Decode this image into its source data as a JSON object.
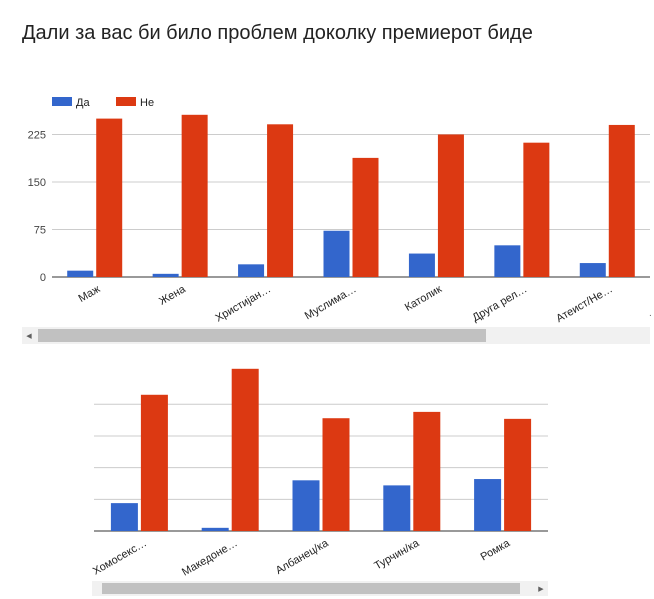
{
  "title": "Дали за вас би било проблем доколку премиерот биде",
  "colors": {
    "yes": "#3366cc",
    "no": "#dc3912",
    "grid": "#cccccc",
    "axis": "#333333"
  },
  "stray_mark": ".",
  "scroll_left_glyph": "◀",
  "scroll_right_glyph": "▶",
  "chart_data": [
    {
      "type": "bar",
      "legend_position": "top-left",
      "categories": [
        "Маж",
        "Жена",
        "Христијан…",
        "Муслима…",
        "Католик",
        "Друга рел…",
        "Атеист/Не…"
      ],
      "series": [
        {
          "name": "Да",
          "values": [
            10,
            5,
            20,
            73,
            37,
            50,
            22
          ]
        },
        {
          "name": "Не",
          "values": [
            250,
            256,
            241,
            188,
            225,
            212,
            240
          ]
        }
      ],
      "yticks": [
        "0",
        "75",
        "150",
        "225"
      ],
      "ylim": [
        0,
        262
      ],
      "grid": true
    },
    {
      "type": "bar",
      "categories": [
        "Хомосекс…",
        "Македоне…",
        "Албанец/ка",
        "Турчин/ка",
        "Ромка"
      ],
      "series": [
        {
          "values": [
            44,
            5,
            80,
            72,
            82
          ]
        },
        {
          "values": [
            215,
            256,
            178,
            188,
            177
          ]
        }
      ],
      "ylim": [
        0,
        262
      ],
      "grid": true
    }
  ]
}
